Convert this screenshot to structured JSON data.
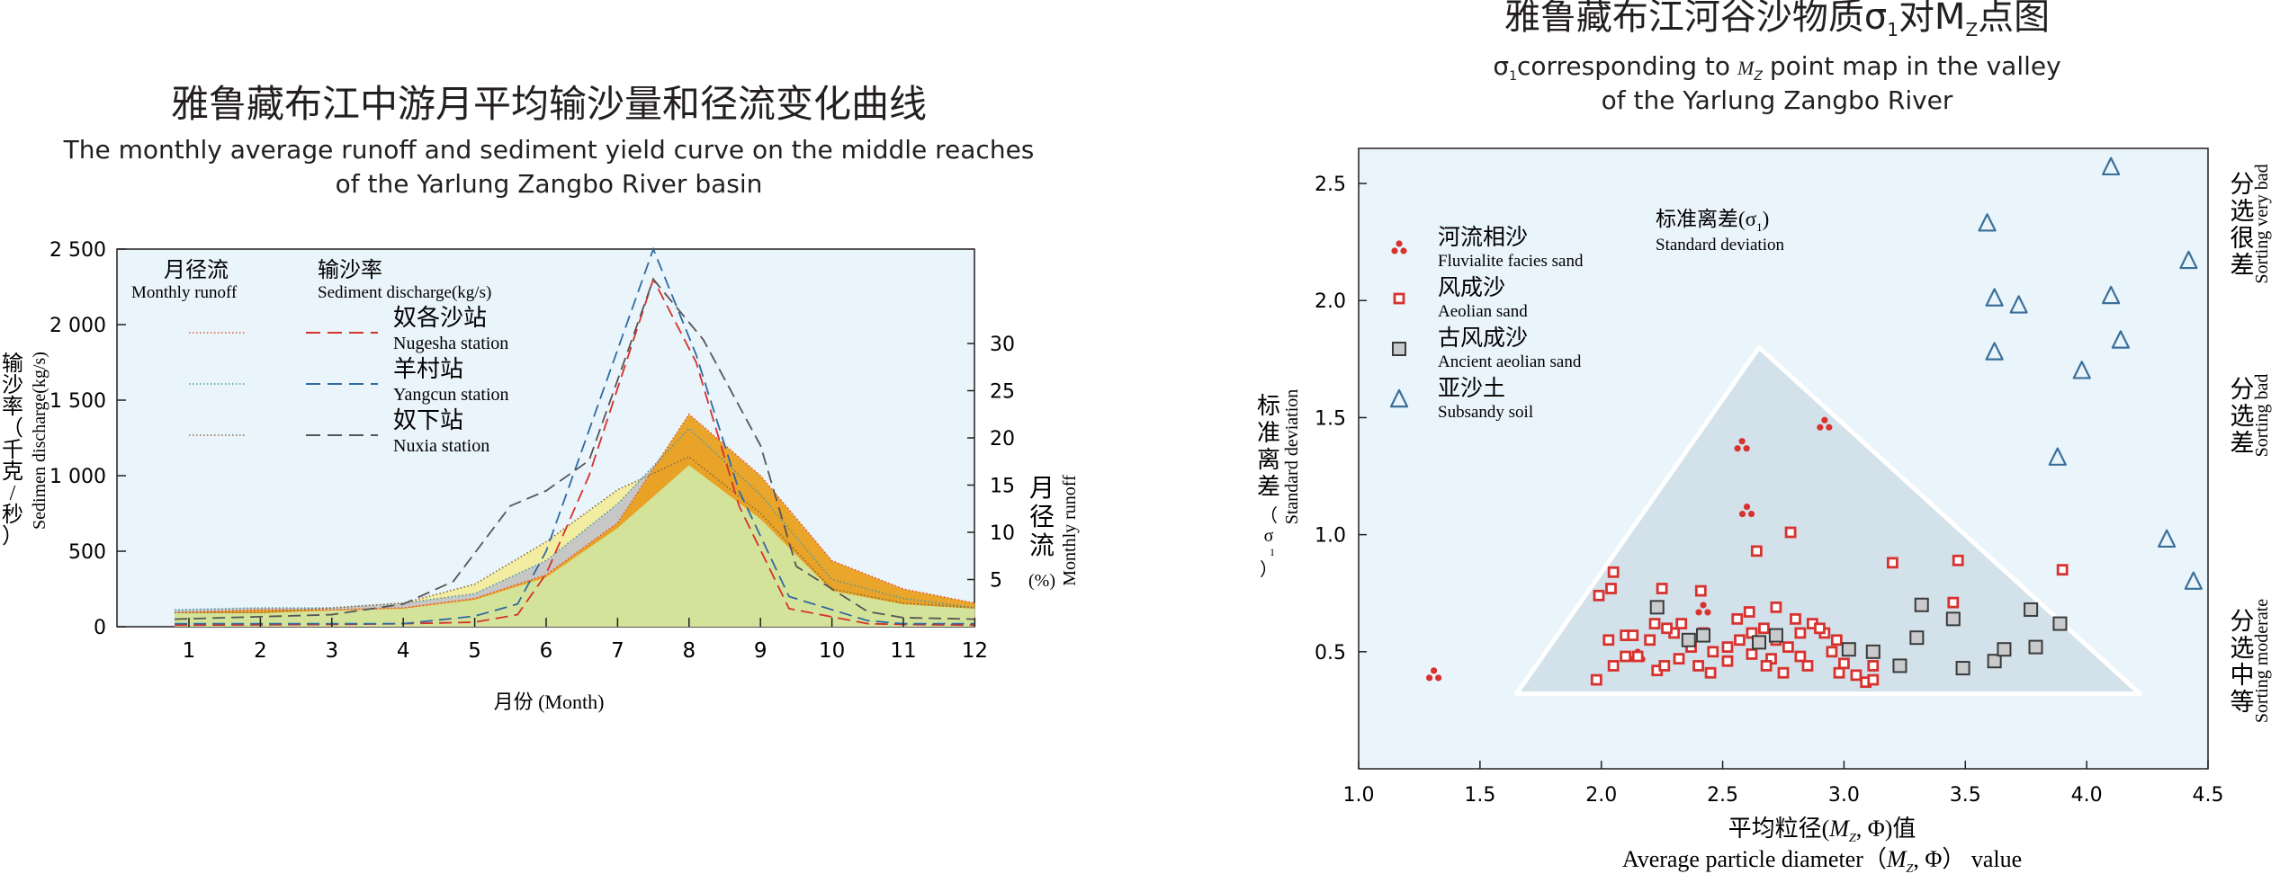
{
  "left_chart": {
    "title_cn": "雅鲁藏布江中游月平均输沙量和径流变化曲线",
    "title_en_line1": "The monthly average runoff and sediment yield curve on the middle reaches",
    "title_en_line2": "of the Yarlung Zangbo River basin",
    "xlabel": "月份 (Month)",
    "ylabel_left_cn": [
      "输",
      "沙",
      "率",
      "（",
      "千",
      "克",
      "/",
      "秒",
      "）"
    ],
    "ylabel_left_en": "Sedimen discharge(kg/s)",
    "ylabel_right_cn": [
      "月",
      "径",
      "流",
      "(%)"
    ],
    "ylabel_right_en": "Monthly runoff",
    "legend": {
      "head_runoff_cn": "月径流",
      "head_runoff_en": "Monthly runoff",
      "head_sed_cn": "输沙率",
      "head_sed_en": "Sediment discharge(kg/s)",
      "stations": [
        {
          "cn": "奴各沙站",
          "en": "Nugesha station",
          "color": "#d6312b",
          "runoff_color": "#e8553a"
        },
        {
          "cn": "羊村站",
          "en": "Yangcun station",
          "color": "#2f6aa3",
          "runoff_color": "#4a9aa8"
        },
        {
          "cn": "奴下站",
          "en": "Nuxia station",
          "color": "#555555",
          "runoff_color": "#8a6a3a"
        }
      ]
    }
  },
  "right_chart": {
    "title_cn_pre": "雅鲁藏布江河谷沙物质",
    "title_sigma": "σ",
    "title_sub1": "1",
    "title_mid": "对M",
    "title_subz": "Z",
    "title_post": "点图",
    "title_en_line1_pre": "σ",
    "title_en_line1_sub": "1",
    "title_en_line1_mid": "corresponding to",
    "title_en_line1_M": "M",
    "title_en_line1_subz": "Z",
    "title_en_line1_post": "point map in the valley",
    "title_en_line2": "of the Yarlung Zangbo River",
    "xlabel_cn_pre": "平均粒径(",
    "xlabel_cn_M": "M",
    "xlabel_cn_subz": "Z",
    "xlabel_cn_post": ", Φ)值",
    "xlabel_en_pre": "Average particle diameter（",
    "xlabel_en_M": "M",
    "xlabel_en_subz": "Z",
    "xlabel_en_post": ", Φ） value",
    "ylabel_cn": [
      "标",
      "准",
      "离",
      "差",
      "（",
      "σ",
      "1",
      "）"
    ],
    "ylabel_en": "Standard deviation",
    "inner_label_cn": "标准离差(σ",
    "inner_label_sub": "1",
    "inner_label_close": ")",
    "inner_label_en": "Standard deviation",
    "sorting": [
      {
        "cn": [
          "分",
          "选",
          "很",
          "差"
        ],
        "en": "Sorting very bad"
      },
      {
        "cn": [
          "分",
          "选",
          "差"
        ],
        "en": "Sorting bad"
      },
      {
        "cn": [
          "分",
          "选",
          "中",
          "等"
        ],
        "en": "Sorting moderate"
      }
    ],
    "legend": [
      {
        "cn": "河流相沙",
        "en": "Fluvialite facies sand",
        "marker": "dots"
      },
      {
        "cn": "风成沙",
        "en": "Aeolian sand",
        "marker": "red-square"
      },
      {
        "cn": "古风成沙",
        "en": "Ancient aeolian sand",
        "marker": "gray-square"
      },
      {
        "cn": "亚沙土",
        "en": "Subsandy soil",
        "marker": "triangle"
      }
    ]
  },
  "chart_data": [
    {
      "type": "line",
      "title": "雅鲁藏布江中游月平均输沙量和径流变化曲线",
      "xlabel": "月份 (Month)",
      "ylabel": "输沙率（千克/秒）",
      "ylabel_right": "月径流 (%)",
      "x": [
        1,
        2,
        3,
        4,
        5,
        6,
        7,
        8,
        9,
        10,
        11,
        12
      ],
      "x_ticks": [
        "1",
        "2",
        "3",
        "4",
        "5",
        "6",
        "7",
        "8",
        "9",
        "10",
        "11",
        "12"
      ],
      "ylim": [
        0,
        2500
      ],
      "y_ticks": [
        0,
        500,
        1000,
        1500,
        2000,
        2500
      ],
      "y_tick_labels": [
        "0",
        "500",
        "1 000",
        "1 500",
        "2 000",
        "2 500"
      ],
      "y2lim": [
        0,
        40
      ],
      "y2_ticks": [
        5,
        10,
        15,
        20,
        25,
        30
      ],
      "grid": false,
      "sediment_series": [
        {
          "name": "奴各沙站",
          "points": [
            [
              0.8,
              10
            ],
            [
              3,
              15
            ],
            [
              4,
              20
            ],
            [
              5,
              30
            ],
            [
              5.6,
              80
            ],
            [
              6,
              350
            ],
            [
              6.6,
              1000
            ],
            [
              7.5,
              2300
            ],
            [
              8.1,
              1750
            ],
            [
              8.7,
              800
            ],
            [
              9.4,
              120
            ],
            [
              10.5,
              20
            ],
            [
              11,
              15
            ],
            [
              12,
              10
            ]
          ]
        },
        {
          "name": "羊村站",
          "points": [
            [
              0.8,
              20
            ],
            [
              3,
              20
            ],
            [
              4,
              20
            ],
            [
              5,
              70
            ],
            [
              5.6,
              150
            ],
            [
              6,
              500
            ],
            [
              6.6,
              1300
            ],
            [
              7.5,
              2500
            ],
            [
              8.1,
              1800
            ],
            [
              8.7,
              900
            ],
            [
              9.4,
              200
            ],
            [
              10.5,
              40
            ],
            [
              11,
              20
            ],
            [
              12,
              20
            ]
          ]
        },
        {
          "name": "奴下站",
          "points": [
            [
              0.8,
              50
            ],
            [
              3,
              80
            ],
            [
              4,
              150
            ],
            [
              4.7,
              300
            ],
            [
              5.5,
              800
            ],
            [
              6,
              900
            ],
            [
              6.6,
              1100
            ],
            [
              7.5,
              2300
            ],
            [
              8.2,
              1900
            ],
            [
              9,
              1200
            ],
            [
              9.5,
              400
            ],
            [
              10.5,
              100
            ],
            [
              11,
              60
            ],
            [
              12,
              50
            ]
          ]
        }
      ],
      "runoff_series": [
        {
          "name": "奴各沙站",
          "points": [
            [
              0.8,
              1.5
            ],
            [
              2,
              1.8
            ],
            [
              3,
              1.8
            ],
            [
              4,
              2
            ],
            [
              5,
              3
            ],
            [
              6,
              5.5
            ],
            [
              7,
              11
            ],
            [
              8,
              22.5
            ],
            [
              9,
              16
            ],
            [
              10,
              7
            ],
            [
              11,
              4
            ],
            [
              12,
              2.5
            ]
          ]
        },
        {
          "name": "羊村站",
          "points": [
            [
              0.8,
              1.8
            ],
            [
              2,
              2
            ],
            [
              3,
              2
            ],
            [
              4,
              2.5
            ],
            [
              5,
              3.5
            ],
            [
              6,
              7
            ],
            [
              7,
              13
            ],
            [
              8,
              21
            ],
            [
              9,
              14
            ],
            [
              10,
              5
            ],
            [
              11,
              3
            ],
            [
              12,
              2
            ]
          ]
        },
        {
          "name": "奴下站",
          "points": [
            [
              0.8,
              1.5
            ],
            [
              2,
              1.5
            ],
            [
              3,
              2
            ],
            [
              4,
              2.5
            ],
            [
              5,
              4.5
            ],
            [
              6,
              9
            ],
            [
              7,
              14.5
            ],
            [
              8,
              18
            ],
            [
              9,
              12
            ],
            [
              10,
              4
            ],
            [
              11,
              2.5
            ],
            [
              12,
              2
            ]
          ]
        }
      ]
    },
    {
      "type": "scatter",
      "title": "雅鲁藏布江河谷沙物质σ1对MZ点图",
      "xlabel": "平均粒径(MZ, Φ)值",
      "ylabel": "标准离差（σ1）",
      "xlim": [
        1.0,
        4.5
      ],
      "ylim": [
        0.0,
        2.65
      ],
      "x_ticks": [
        1.0,
        1.5,
        2.0,
        2.5,
        3.0,
        3.5,
        4.0,
        4.5
      ],
      "x_tick_labels": [
        "1.0",
        "1.5",
        "2.0",
        "2.5",
        "3.0",
        "3.5",
        "4.0",
        "4.5"
      ],
      "y_ticks": [
        0.5,
        1.0,
        1.5,
        2.0,
        2.5
      ],
      "y_tick_labels": [
        "0.5",
        "1.0",
        "1.5",
        "2.0",
        "2.5"
      ],
      "grid": false,
      "region_triangle": [
        [
          1.65,
          0.32
        ],
        [
          2.65,
          1.8
        ],
        [
          4.22,
          0.32
        ]
      ],
      "series": [
        {
          "name": "河流相沙",
          "points": [
            [
              1.31,
              0.4
            ],
            [
              2.58,
              1.38
            ],
            [
              2.92,
              1.47
            ],
            [
              2.6,
              1.1
            ],
            [
              2.42,
              0.68
            ],
            [
              2.15,
              0.48
            ]
          ]
        },
        {
          "name": "风成沙",
          "points": [
            [
              1.99,
              0.74
            ],
            [
              2.04,
              0.77
            ],
            [
              2.05,
              0.84
            ],
            [
              2.2,
              0.55
            ],
            [
              2.3,
              0.58
            ],
            [
              2.03,
              0.55
            ],
            [
              2.1,
              0.57
            ],
            [
              2.15,
              0.48
            ],
            [
              2.22,
              0.62
            ],
            [
              2.27,
              0.6
            ],
            [
              2.33,
              0.62
            ],
            [
              2.37,
              0.52
            ],
            [
              2.42,
              0.58
            ],
            [
              2.46,
              0.5
            ],
            [
              2.52,
              0.52
            ],
            [
              2.57,
              0.55
            ],
            [
              2.62,
              0.58
            ],
            [
              2.67,
              0.6
            ],
            [
              2.72,
              0.55
            ],
            [
              2.77,
              0.52
            ],
            [
              2.82,
              0.58
            ],
            [
              2.87,
              0.62
            ],
            [
              2.92,
              0.58
            ],
            [
              2.97,
              0.55
            ],
            [
              2.25,
              0.77
            ],
            [
              2.41,
              0.76
            ],
            [
              2.56,
              0.64
            ],
            [
              2.61,
              0.67
            ],
            [
              2.72,
              0.69
            ],
            [
              2.9,
              0.6
            ],
            [
              3.0,
              0.45
            ],
            [
              3.05,
              0.4
            ],
            [
              3.09,
              0.37
            ],
            [
              3.12,
              0.38
            ],
            [
              3.2,
              0.88
            ],
            [
              3.45,
              0.71
            ],
            [
              3.47,
              0.89
            ],
            [
              3.9,
              0.85
            ],
            [
              2.78,
              1.01
            ],
            [
              2.64,
              0.93
            ],
            [
              1.98,
              0.38
            ],
            [
              2.05,
              0.44
            ],
            [
              2.23,
              0.42
            ],
            [
              2.45,
              0.41
            ],
            [
              2.7,
              0.47
            ],
            [
              2.75,
              0.41
            ],
            [
              2.85,
              0.44
            ],
            [
              2.98,
              0.41
            ],
            [
              3.12,
              0.44
            ],
            [
              2.1,
              0.48
            ],
            [
              2.13,
              0.57
            ],
            [
              2.32,
              0.47
            ],
            [
              2.52,
              0.46
            ],
            [
              2.62,
              0.49
            ],
            [
              2.82,
              0.48
            ],
            [
              2.95,
              0.5
            ],
            [
              2.8,
              0.64
            ],
            [
              2.68,
              0.44
            ],
            [
              2.4,
              0.44
            ],
            [
              2.26,
              0.44
            ]
          ]
        },
        {
          "name": "古风成沙",
          "points": [
            [
              2.23,
              0.69
            ],
            [
              2.36,
              0.55
            ],
            [
              2.42,
              0.57
            ],
            [
              2.65,
              0.54
            ],
            [
              2.72,
              0.57
            ],
            [
              3.02,
              0.51
            ],
            [
              3.12,
              0.5
            ],
            [
              3.23,
              0.44
            ],
            [
              3.3,
              0.56
            ],
            [
              3.32,
              0.7
            ],
            [
              3.45,
              0.64
            ],
            [
              3.49,
              0.43
            ],
            [
              3.62,
              0.46
            ],
            [
              3.66,
              0.51
            ],
            [
              3.77,
              0.68
            ],
            [
              3.79,
              0.52
            ],
            [
              3.89,
              0.62
            ]
          ]
        },
        {
          "name": "亚沙土",
          "points": [
            [
              4.1,
              2.57
            ],
            [
              3.59,
              2.33
            ],
            [
              3.62,
              2.01
            ],
            [
              3.72,
              1.98
            ],
            [
              4.1,
              2.02
            ],
            [
              4.42,
              2.17
            ],
            [
              3.62,
              1.78
            ],
            [
              4.14,
              1.83
            ],
            [
              3.98,
              1.7
            ],
            [
              3.88,
              1.33
            ],
            [
              4.33,
              0.98
            ],
            [
              4.44,
              0.8
            ]
          ]
        }
      ]
    }
  ]
}
